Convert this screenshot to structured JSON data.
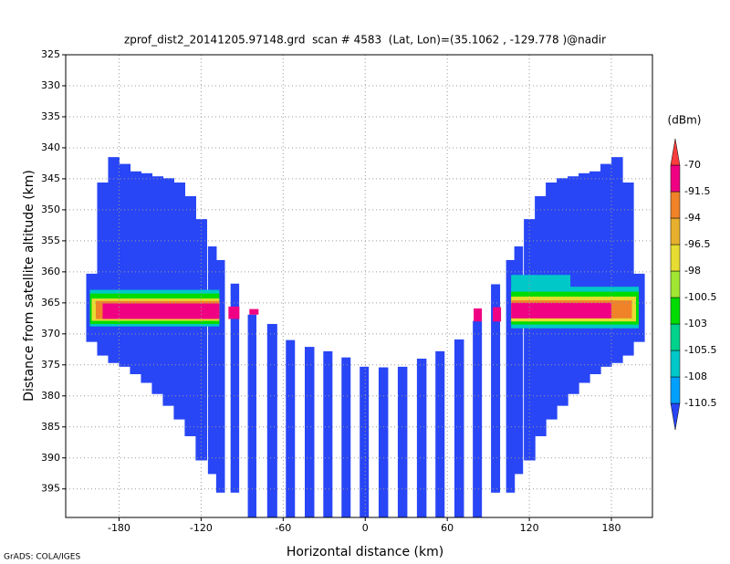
{
  "chart_data": {
    "type": "cross-section",
    "title": "zprof_dist2_20141205.97148.grd  scan # 4583  (Lat, Lon)=(35.1062 , -129.778 )@nadir",
    "x_label": "Horizontal distance (km)",
    "y_label": "Distance from satellite altitude (km)",
    "xlim": [
      -219,
      210
    ],
    "ylim": [
      399.6,
      325
    ],
    "xticks": [
      -180,
      -120,
      -60,
      0,
      60,
      120,
      180
    ],
    "yticks": [
      325,
      330,
      335,
      340,
      345,
      350,
      355,
      360,
      365,
      370,
      375,
      380,
      385,
      390,
      395
    ],
    "grid": true,
    "swath": {
      "value": -112,
      "x": [
        -200,
        -192,
        -184,
        -176,
        -168,
        -160,
        -152,
        -144,
        -136,
        -128,
        -120,
        -112,
        -106,
        106,
        112,
        120,
        128,
        136,
        144,
        152,
        160,
        168,
        176,
        184,
        192,
        200
      ],
      "top": [
        360.3,
        345.6,
        341.5,
        342.6,
        343.8,
        344.1,
        344.6,
        344.9,
        345.6,
        347.8,
        351.5,
        355.9,
        358.1,
        358.1,
        355.9,
        351.5,
        347.8,
        345.6,
        344.9,
        344.6,
        344.1,
        343.8,
        342.6,
        341.5,
        345.6,
        360.3
      ],
      "bottom": [
        371.3,
        373.5,
        374.7,
        375.3,
        376.5,
        377.9,
        379.7,
        381.6,
        383.8,
        386.5,
        390.4,
        392.6,
        395.6,
        395.6,
        392.6,
        390.4,
        386.5,
        383.8,
        381.6,
        379.7,
        377.9,
        376.5,
        375.3,
        374.7,
        373.5,
        371.3
      ]
    },
    "stripes": {
      "value": -112,
      "x": [
        -95.3,
        -82.7,
        -68,
        -54.7,
        -40.7,
        -27.3,
        -14,
        -0.7,
        13.3,
        27.3,
        41.3,
        54.7,
        68.7,
        82,
        95.3
      ],
      "top": [
        361.9,
        366.9,
        368.4,
        371.0,
        372.1,
        372.8,
        373.8,
        375.3,
        375.4,
        375.3,
        374.0,
        372.8,
        370.9,
        367.9,
        362.0
      ],
      "bottom": [
        395.6,
        399.6,
        399.6,
        399.6,
        399.6,
        399.6,
        399.6,
        399.6,
        399.6,
        399.6,
        399.6,
        399.6,
        399.6,
        399.6,
        395.6
      ]
    },
    "band": {
      "xstart": [
        -201.3,
        -201.3,
        -200,
        -197,
        -192,
        -100,
        -84.7,
        79.3,
        93.3,
        106.7,
        106.7,
        106.7,
        106.7,
        106.7,
        106.7
      ],
      "xend": [
        -106.7,
        -106.7,
        -106.7,
        -106.7,
        -106.7,
        -92,
        -78,
        85.3,
        99.3,
        150,
        200,
        200,
        198,
        195,
        180
      ],
      "top": [
        362.9,
        363.5,
        364.3,
        364.7,
        365.1,
        365.6,
        366.0,
        365.9,
        365.7,
        360.5,
        362.4,
        363.2,
        364.0,
        364.6,
        365.0
      ],
      "bottom": [
        368.8,
        368.4,
        367.9,
        367.6,
        367.6,
        367.6,
        366.9,
        368.0,
        368.0,
        363.5,
        369.1,
        368.5,
        368.0,
        367.5,
        367.5
      ],
      "values": [
        -107,
        -102,
        -97,
        -93,
        -88,
        -88,
        -88,
        -88,
        -88,
        -107,
        -107,
        -102,
        -97,
        -93,
        -88
      ]
    },
    "colorbar": {
      "label": "(dBm)",
      "levels": [
        -110.5,
        -108,
        -105.5,
        -103,
        -100.5,
        -98,
        -96.5,
        -94,
        -91.5,
        -70
      ],
      "colors": [
        "#2846f5",
        "#00a0ff",
        "#00c8c8",
        "#00d28c",
        "#00dc00",
        "#a0e632",
        "#e6dc32",
        "#e6af2d",
        "#f08228",
        "#f00082",
        "#fa3c3c"
      ]
    }
  },
  "footer": "GrADS: COLA/IGES"
}
